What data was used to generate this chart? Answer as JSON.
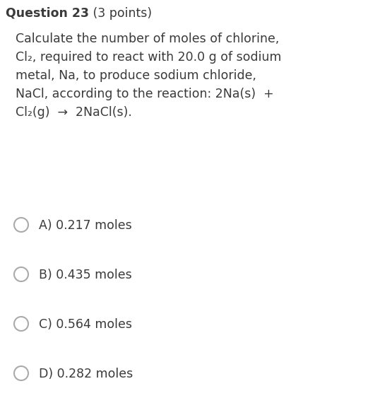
{
  "title_bold": "Question 23",
  "title_normal": " (3 points)",
  "question_lines": [
    "Calculate the number of moles of chlorine,",
    "Cl₂, required to react with 20.0 g of sodium",
    "metal, Na, to produce sodium chloride,",
    "NaCl, according to the reaction: 2Na(s)  +",
    "Cl₂(g)  →  2NaCl(s)."
  ],
  "options": [
    {
      "label": "A)",
      "text": "0.217 moles"
    },
    {
      "label": "B)",
      "text": "0.435 moles"
    },
    {
      "label": "C)",
      "text": "0.564 moles"
    },
    {
      "label": "D)",
      "text": "0.282 moles"
    }
  ],
  "bg_color": "#ffffff",
  "text_color": "#3a3a3a",
  "title_fontsize": 12.5,
  "question_fontsize": 12.5,
  "option_fontsize": 12.5,
  "fig_width": 5.31,
  "fig_height": 5.87,
  "dpi": 100
}
